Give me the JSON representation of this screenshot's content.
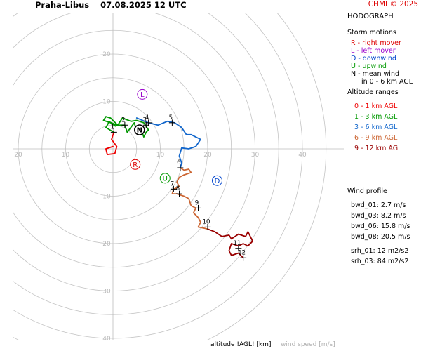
{
  "header": {
    "station": "Praha-Libus",
    "datetime": "07.08.2025 12 UTC",
    "copyright": "CHMI © 2025"
  },
  "panel": {
    "title": "HODOGRAPH",
    "storm_title": "Storm motions",
    "storm_items": [
      {
        "text": "R - right mover",
        "color": "#dd0000"
      },
      {
        "text": "L - left mover",
        "color": "#9900cc"
      },
      {
        "text": "D - downwind",
        "color": "#0044cc"
      },
      {
        "text": "U - upwind",
        "color": "#009900"
      },
      {
        "text": "N - mean wind",
        "color": "#000000"
      }
    ],
    "mean_wind_note": "in 0 - 6 km AGL",
    "alt_title": "Altitude ranges",
    "alt_items": [
      {
        "text": "0 - 1 km AGL",
        "color": "#ee0000"
      },
      {
        "text": "1 - 3 km AGL",
        "color": "#009900"
      },
      {
        "text": "3 - 6 km AGL",
        "color": "#1166cc"
      },
      {
        "text": "6 - 9 km AGL",
        "color": "#cc6633"
      },
      {
        "text": "9 - 12 km AGL",
        "color": "#990000"
      }
    ],
    "wind_title": "Wind profile",
    "wind_items": [
      "bwd_01: 2.7 m/s",
      "bwd_03: 8.2 m/s",
      "bwd_06: 15.8 m/s",
      "bwd_08: 20.5 m/s"
    ],
    "srh_items": [
      "srh_01: 12 m2/s2",
      "srh_03: 84 m2/s2"
    ]
  },
  "footer": {
    "altitude_label": "altitude !AGL! [km]",
    "speed_label": "wind speed [m/s]"
  },
  "chart_data": {
    "type": "line",
    "units": "m/s",
    "ring_step": 5,
    "ring_max": 45,
    "x_ticks": [
      -20,
      -10,
      10,
      20,
      30,
      40
    ],
    "x_tick_labels": [
      "20",
      "10",
      "10",
      "20",
      "30",
      "40"
    ],
    "y_ticks": [
      20,
      10,
      -10,
      -20,
      -30,
      -40
    ],
    "y_tick_labels": [
      "20",
      "10",
      "10",
      "20",
      "30",
      "40"
    ],
    "segments": [
      {
        "range": "0 - 1 km",
        "color": "#ee0000",
        "points": [
          [
            0.0,
            0.5
          ],
          [
            -1.5,
            0.0
          ],
          [
            -1.2,
            -1.2
          ],
          [
            0.4,
            -1.0
          ],
          [
            0.8,
            0.5
          ],
          [
            -0.3,
            2.0
          ],
          [
            0.2,
            3.5
          ]
        ]
      },
      {
        "range": "1 - 3 km",
        "color": "#009900",
        "points": [
          [
            0.2,
            3.5
          ],
          [
            -1.5,
            4.5
          ],
          [
            -0.8,
            5.7
          ],
          [
            0.8,
            5.0
          ],
          [
            2.5,
            5.0
          ],
          [
            3.0,
            3.5
          ],
          [
            4.5,
            5.5
          ],
          [
            5.2,
            3.0
          ],
          [
            6.0,
            4.0
          ],
          [
            6.5,
            2.5
          ],
          [
            7.0,
            3.5
          ],
          [
            7.5,
            4.0
          ],
          [
            6.5,
            5.5
          ],
          [
            5.0,
            6.0
          ],
          [
            3.8,
            5.8
          ],
          [
            2.0,
            6.5
          ],
          [
            1.0,
            5.0
          ],
          [
            -0.5,
            6.5
          ],
          [
            -1.5,
            6.8
          ],
          [
            -2.0,
            6.0
          ],
          [
            -0.5,
            5.5
          ],
          [
            0.5,
            4.8
          ]
        ]
      },
      {
        "range": "3 - 6 km",
        "color": "#1166cc",
        "points": [
          [
            5.0,
            6.5
          ],
          [
            7.5,
            5.5
          ],
          [
            9.5,
            5.0
          ],
          [
            11.5,
            5.8
          ],
          [
            13.0,
            5.5
          ],
          [
            14.5,
            4.5
          ],
          [
            15.5,
            3.0
          ],
          [
            16.5,
            3.0
          ],
          [
            18.5,
            2.0
          ],
          [
            17.5,
            0.5
          ],
          [
            16.0,
            0.0
          ],
          [
            14.5,
            0.2
          ],
          [
            14.0,
            -1.5
          ],
          [
            14.5,
            -3.0
          ],
          [
            14.2,
            -4.0
          ]
        ]
      },
      {
        "range": "6 - 9 km",
        "color": "#cc6633",
        "points": [
          [
            14.2,
            -4.0
          ],
          [
            15.0,
            -4.5
          ],
          [
            16.0,
            -4.3
          ],
          [
            16.5,
            -5.0
          ],
          [
            15.0,
            -5.5
          ],
          [
            14.0,
            -6.0
          ],
          [
            13.5,
            -7.0
          ],
          [
            14.0,
            -8.0
          ],
          [
            12.8,
            -8.5
          ],
          [
            12.5,
            -9.5
          ],
          [
            13.5,
            -9.5
          ],
          [
            15.0,
            -10.0
          ],
          [
            16.0,
            -10.5
          ],
          [
            16.5,
            -12.0
          ],
          [
            17.5,
            -12.5
          ],
          [
            17.0,
            -13.5
          ],
          [
            18.0,
            -14.5
          ],
          [
            18.5,
            -15.5
          ],
          [
            18.0,
            -16.5
          ],
          [
            19.5,
            -16.8
          ],
          [
            20.2,
            -17.0
          ]
        ]
      },
      {
        "range": "9 - 12 km",
        "color": "#990000",
        "points": [
          [
            20.2,
            -17.0
          ],
          [
            21.5,
            -17.5
          ],
          [
            23.0,
            -18.5
          ],
          [
            24.5,
            -18.2
          ],
          [
            25.0,
            -19.0
          ],
          [
            26.5,
            -18.0
          ],
          [
            28.0,
            -18.5
          ],
          [
            28.5,
            -17.5
          ],
          [
            29.0,
            -18.5
          ],
          [
            29.5,
            -19.5
          ],
          [
            28.5,
            -20.5
          ],
          [
            27.5,
            -20.0
          ],
          [
            26.5,
            -20.5
          ],
          [
            25.0,
            -20.0
          ],
          [
            24.5,
            -21.5
          ],
          [
            25.0,
            -22.5
          ],
          [
            26.5,
            -22.0
          ],
          [
            27.5,
            -23.0
          ]
        ]
      }
    ],
    "altitude_markers": [
      {
        "label": "1",
        "x": 0.2,
        "y": 3.5
      },
      {
        "label": "2",
        "x": 2.5,
        "y": 5.0
      },
      {
        "label": "3",
        "x": 7.0,
        "y": 5.0
      },
      {
        "label": "4",
        "x": 7.5,
        "y": 5.5
      },
      {
        "label": "5",
        "x": 12.5,
        "y": 5.5
      },
      {
        "label": "6",
        "x": 14.2,
        "y": -4.0
      },
      {
        "label": "7",
        "x": 12.8,
        "y": -8.5
      },
      {
        "label": "8",
        "x": 14.0,
        "y": -9.5
      },
      {
        "label": "9",
        "x": 18.0,
        "y": -12.5
      },
      {
        "label": "10",
        "x": 20.0,
        "y": -16.5
      },
      {
        "label": "11",
        "x": 26.5,
        "y": -21.0
      },
      {
        "label": "12",
        "x": 27.5,
        "y": -23.0
      }
    ],
    "storm_motions": [
      {
        "label": "R",
        "x": 4.7,
        "y": -3.3,
        "color": "#dd0000"
      },
      {
        "label": "L",
        "x": 6.2,
        "y": 11.5,
        "color": "#9900cc"
      },
      {
        "label": "D",
        "x": 22.0,
        "y": -6.7,
        "color": "#0044cc"
      },
      {
        "label": "U",
        "x": 11.0,
        "y": -6.2,
        "color": "#009900"
      },
      {
        "label": "N",
        "x": 5.6,
        "y": 4.0,
        "color": "#000000"
      }
    ]
  }
}
